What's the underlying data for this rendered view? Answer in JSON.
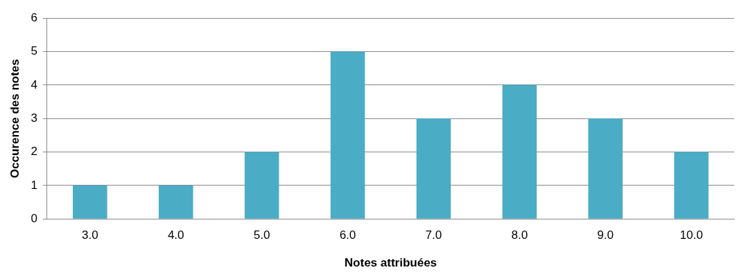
{
  "chart_data": {
    "type": "bar",
    "xlabel": "Notes attribuées",
    "ylabel": "Occurence des notes",
    "categories": [
      "3.0",
      "4.0",
      "5.0",
      "6.0",
      "7.0",
      "8.0",
      "9.0",
      "10.0"
    ],
    "values": [
      1,
      1,
      2,
      5,
      3,
      4,
      3,
      2
    ],
    "color": "#4bacc6",
    "ylim": [
      0,
      6
    ],
    "yticks": [
      0,
      1,
      2,
      3,
      4,
      5,
      6
    ],
    "grid": "y"
  }
}
